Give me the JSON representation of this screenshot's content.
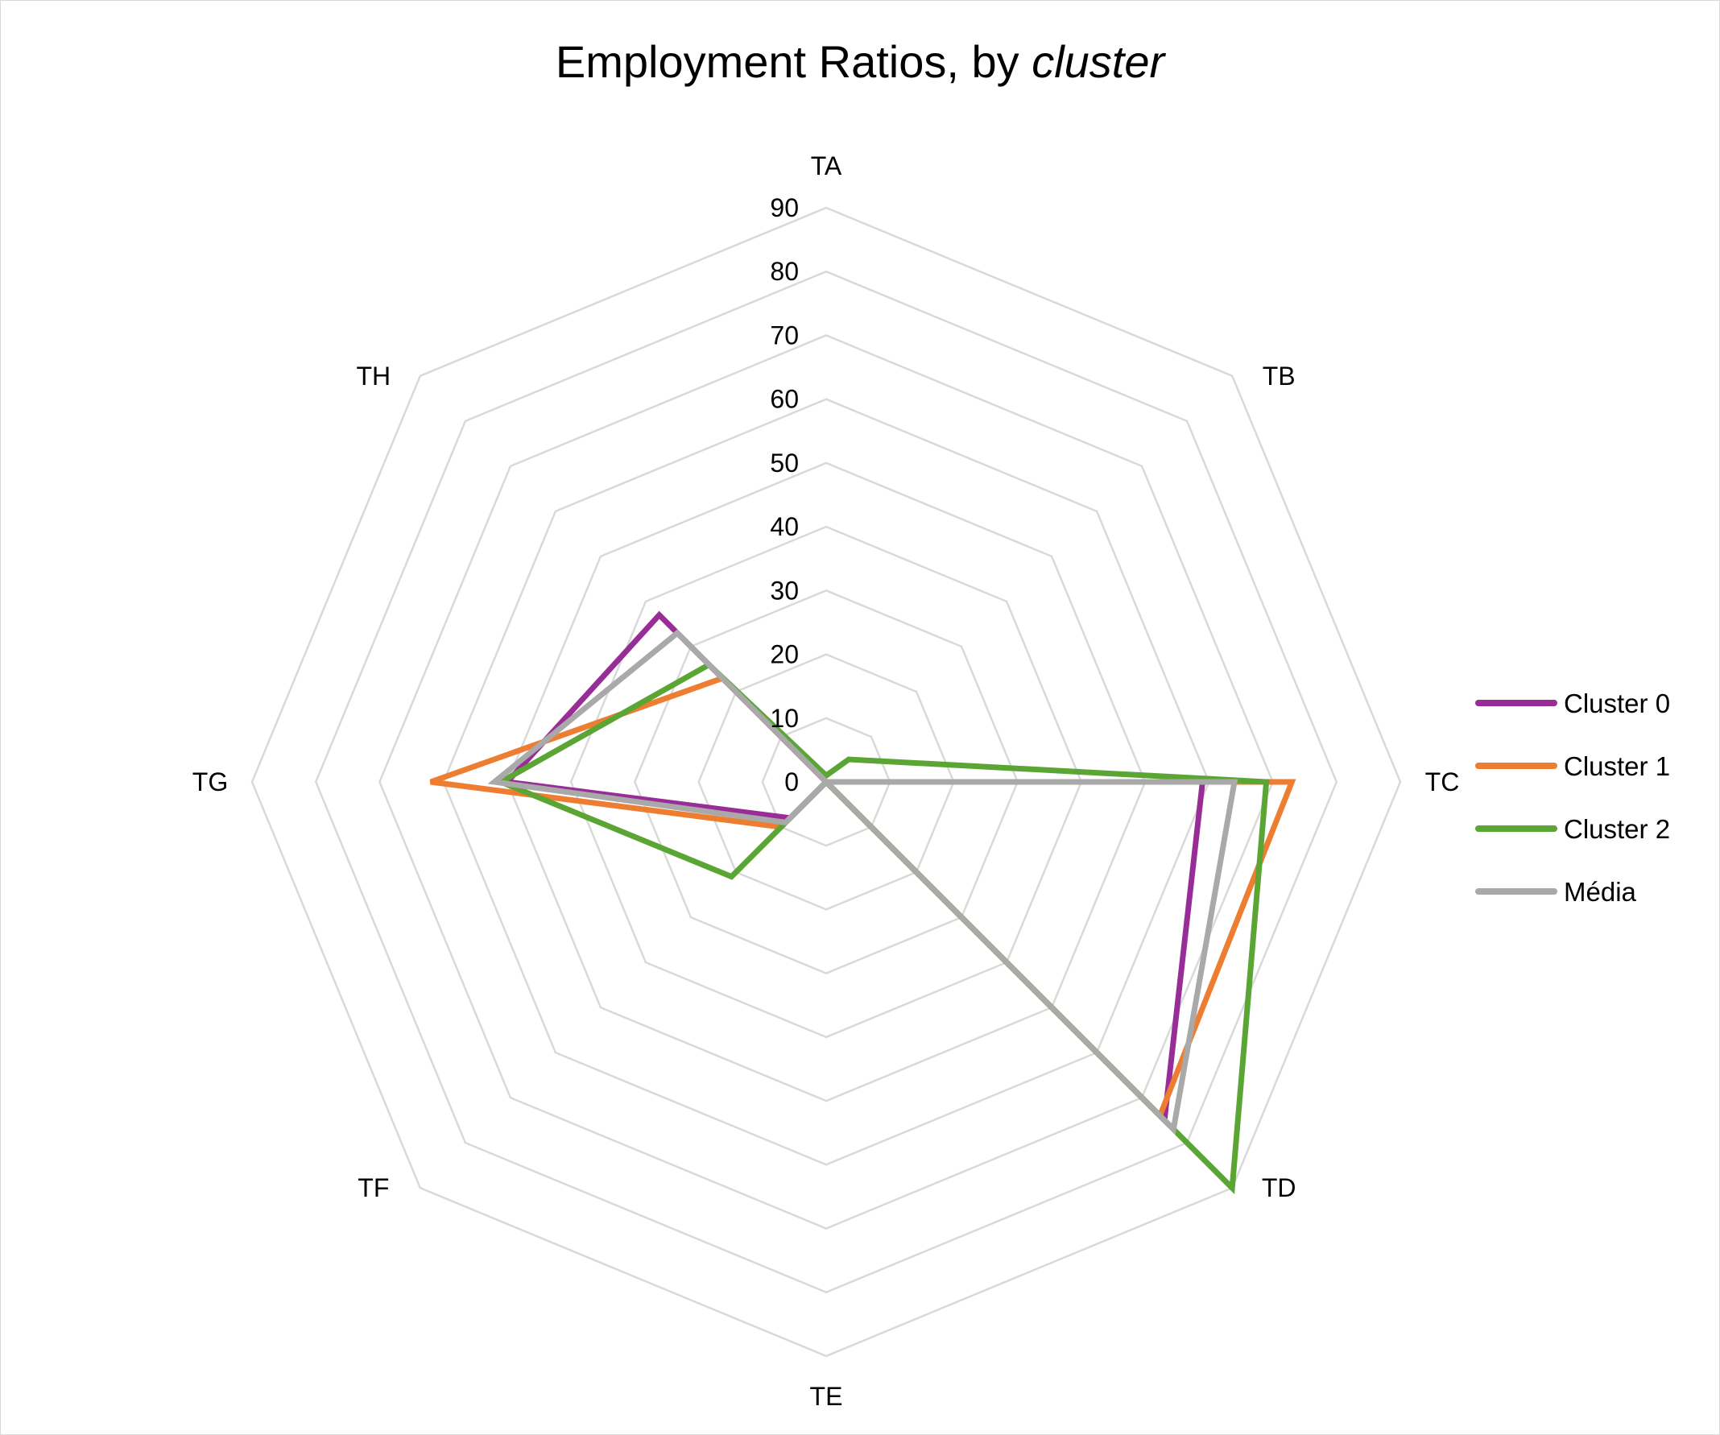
{
  "chart_data": {
    "type": "radar",
    "title": "Employment Ratios, by",
    "title_emphasis": "cluster",
    "axes": [
      "TA",
      "TB",
      "TC",
      "TD",
      "TE",
      "TF",
      "TG",
      "TH"
    ],
    "r_ticks": [
      0,
      10,
      20,
      30,
      40,
      50,
      60,
      70,
      80,
      90
    ],
    "rlim": [
      0,
      90
    ],
    "grid": true,
    "legend_position": "right",
    "series": [
      {
        "name": "Cluster 0",
        "color": "#992d97",
        "values": [
          0,
          0,
          59,
          75,
          0,
          8,
          50,
          37
        ]
      },
      {
        "name": "Cluster 1",
        "color": "#ed7d31",
        "values": [
          0,
          0,
          73,
          74,
          0,
          10,
          62,
          23
        ]
      },
      {
        "name": "Cluster 2",
        "color": "#5aa534",
        "values": [
          1,
          5,
          69,
          90,
          0,
          21,
          51,
          26
        ]
      },
      {
        "name": "Média",
        "color": "#a9a9a9",
        "values": [
          0,
          0,
          64,
          77,
          0,
          9,
          52,
          33
        ]
      }
    ]
  }
}
